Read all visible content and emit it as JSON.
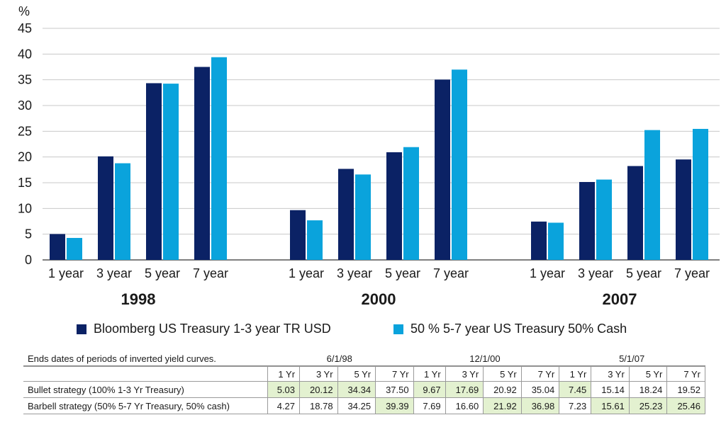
{
  "chart_data": {
    "type": "bar",
    "y_unit_label": "%",
    "ylim": [
      0,
      45
    ],
    "yticks": [
      0,
      5,
      10,
      15,
      20,
      25,
      30,
      35,
      40,
      45
    ],
    "grid": true,
    "groups": [
      {
        "name": "1998",
        "categories": [
          "1 year",
          "3 year",
          "5 year",
          "7 year"
        ]
      },
      {
        "name": "2000",
        "categories": [
          "1 year",
          "3 year",
          "5 year",
          "7 year"
        ]
      },
      {
        "name": "2007",
        "categories": [
          "1 year",
          "3 year",
          "5 year",
          "7 year"
        ]
      }
    ],
    "series": [
      {
        "name": "Bloomberg US Treasury 1-3 year TR USD",
        "color": "#0b2265",
        "values": [
          [
            5.03,
            20.12,
            34.34,
            37.5
          ],
          [
            9.67,
            17.69,
            20.92,
            35.04
          ],
          [
            7.45,
            15.14,
            18.24,
            19.52
          ]
        ]
      },
      {
        "name": "50 % 5-7 year US Treasury 50% Cash",
        "color": "#0aa3dc",
        "values": [
          [
            4.27,
            18.78,
            34.25,
            39.39
          ],
          [
            7.69,
            16.6,
            21.92,
            36.98
          ],
          [
            7.23,
            15.61,
            25.23,
            25.46
          ]
        ]
      }
    ],
    "legend_position": "bottom"
  },
  "table": {
    "caption": "Ends dates of periods of inverted yield curves.",
    "periods": [
      "6/1/98",
      "12/1/00",
      "5/1/07"
    ],
    "columns": [
      "1 Yr",
      "3 Yr",
      "5 Yr",
      "7 Yr",
      "1 Yr",
      "3 Yr",
      "5 Yr",
      "7 Yr",
      "1 Yr",
      "3 Yr",
      "5 Yr",
      "7 Yr"
    ],
    "rows": [
      {
        "label": "Bullet strategy (100% 1-3 Yr Treasury)",
        "values": [
          "5.03",
          "20.12",
          "34.34",
          "37.50",
          "9.67",
          "17.69",
          "20.92",
          "35.04",
          "7.45",
          "15.14",
          "18.24",
          "19.52"
        ],
        "highlighted": [
          true,
          true,
          true,
          false,
          true,
          true,
          false,
          false,
          true,
          false,
          false,
          false
        ]
      },
      {
        "label": "Barbell strategy (50% 5-7 Yr Treasury, 50% cash)",
        "values": [
          "4.27",
          "18.78",
          "34.25",
          "39.39",
          "7.69",
          "16.60",
          "21.92",
          "36.98",
          "7.23",
          "15.61",
          "25.23",
          "25.46"
        ],
        "highlighted": [
          false,
          false,
          false,
          true,
          false,
          false,
          true,
          true,
          false,
          true,
          true,
          true
        ]
      }
    ],
    "highlight_color": "#e3f1d0"
  }
}
